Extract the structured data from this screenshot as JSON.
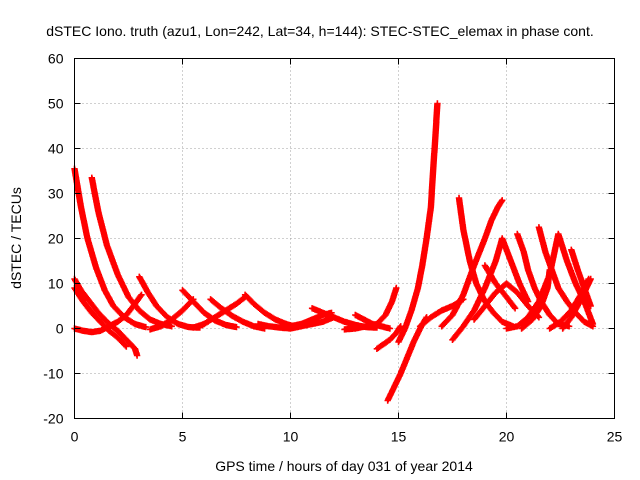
{
  "chart_data": {
    "type": "scatter",
    "title": "dSTEC Iono. truth (azu1, Lon=242, Lat=34, h=144): STEC-STEC_elemax in phase cont.",
    "xlabel": "GPS time / hours of day 031 of year 2014",
    "ylabel": "dSTEC  / TECUs",
    "xlim": [
      0,
      25
    ],
    "ylim": [
      -20,
      60
    ],
    "xticks": [
      0,
      5,
      10,
      15,
      20,
      25
    ],
    "yticks": [
      -20,
      -10,
      0,
      10,
      20,
      30,
      40,
      50,
      60
    ],
    "grid": true,
    "marker": "plus",
    "color": "#ff0000",
    "arcs": [
      [
        [
          0.0,
          35.5
        ],
        [
          0.3,
          27
        ],
        [
          0.6,
          20
        ],
        [
          1.0,
          13.5
        ],
        [
          1.4,
          8.5
        ],
        [
          1.8,
          5
        ],
        [
          2.3,
          2.5
        ],
        [
          2.8,
          1
        ],
        [
          3.3,
          0.3
        ]
      ],
      [
        [
          0.0,
          11
        ],
        [
          0.3,
          8.5
        ],
        [
          0.7,
          6
        ],
        [
          1.1,
          3.5
        ],
        [
          1.5,
          1.5
        ],
        [
          2.0,
          -0.5
        ],
        [
          2.4,
          -2.5
        ],
        [
          2.8,
          -4.5
        ],
        [
          2.9,
          -6
        ]
      ],
      [
        [
          0.0,
          9
        ],
        [
          0.4,
          6
        ],
        [
          0.8,
          3.5
        ],
        [
          1.2,
          1.5
        ],
        [
          1.6,
          -0.5
        ],
        [
          2.0,
          -2
        ],
        [
          2.4,
          -4
        ]
      ],
      [
        [
          0.0,
          0
        ],
        [
          0.4,
          -0.5
        ],
        [
          0.8,
          -0.8
        ],
        [
          1.2,
          -0.5
        ],
        [
          1.6,
          0.5
        ],
        [
          2.0,
          1.5
        ],
        [
          2.4,
          3
        ],
        [
          2.8,
          5.5
        ],
        [
          3.1,
          7.5
        ]
      ],
      [
        [
          0.8,
          33.5
        ],
        [
          1.1,
          26
        ],
        [
          1.5,
          18.5
        ],
        [
          2.0,
          12
        ],
        [
          2.5,
          7
        ],
        [
          3.0,
          4
        ],
        [
          3.5,
          2
        ],
        [
          4.0,
          1
        ],
        [
          4.5,
          0.5
        ]
      ],
      [
        [
          3.0,
          11.5
        ],
        [
          3.4,
          8
        ],
        [
          3.8,
          5
        ],
        [
          4.3,
          2.5
        ],
        [
          4.8,
          1
        ],
        [
          5.3,
          0.3
        ],
        [
          5.8,
          0.2
        ]
      ],
      [
        [
          3.5,
          -0.2
        ],
        [
          4.0,
          0.5
        ],
        [
          4.5,
          2
        ],
        [
          5.0,
          4
        ],
        [
          5.5,
          6.5
        ]
      ],
      [
        [
          5.0,
          8.5
        ],
        [
          5.5,
          6
        ],
        [
          6.0,
          3.5
        ],
        [
          6.5,
          1.8
        ],
        [
          7.0,
          0.8
        ],
        [
          7.5,
          0.3
        ]
      ],
      [
        [
          5.5,
          0.2
        ],
        [
          6.0,
          1
        ],
        [
          6.5,
          2.5
        ],
        [
          7.0,
          4
        ],
        [
          7.5,
          5.5
        ],
        [
          7.9,
          7
        ]
      ],
      [
        [
          6.3,
          6.5
        ],
        [
          6.8,
          4.5
        ],
        [
          7.3,
          2.8
        ],
        [
          7.8,
          1.5
        ],
        [
          8.3,
          0.5
        ],
        [
          8.8,
          0
        ]
      ],
      [
        [
          7.9,
          7.5
        ],
        [
          8.3,
          5.5
        ],
        [
          8.8,
          3.5
        ],
        [
          9.3,
          2
        ],
        [
          9.8,
          1
        ],
        [
          10.3,
          0.3
        ]
      ],
      [
        [
          8.5,
          1
        ],
        [
          9.0,
          0.5
        ],
        [
          9.5,
          0.2
        ],
        [
          10.0,
          0
        ],
        [
          10.5,
          0.5
        ],
        [
          11.0,
          1
        ],
        [
          11.5,
          1.5
        ],
        [
          12.0,
          2.5
        ]
      ],
      [
        [
          10.0,
          0.5
        ],
        [
          10.5,
          1
        ],
        [
          11.0,
          2
        ],
        [
          11.5,
          3
        ],
        [
          11.9,
          3.5
        ]
      ],
      [
        [
          11.0,
          4.5
        ],
        [
          11.5,
          3.5
        ],
        [
          12.0,
          2.5
        ],
        [
          12.5,
          1.5
        ],
        [
          13.0,
          0.8
        ],
        [
          13.5,
          0.3
        ],
        [
          14.0,
          0.2
        ]
      ],
      [
        [
          13.0,
          3
        ],
        [
          13.4,
          2
        ],
        [
          13.8,
          1
        ],
        [
          14.2,
          0.5
        ],
        [
          14.6,
          0
        ]
      ],
      [
        [
          12.5,
          -0.2
        ],
        [
          13.0,
          0
        ],
        [
          13.5,
          0.5
        ],
        [
          14.0,
          1
        ],
        [
          14.4,
          3
        ],
        [
          14.7,
          6
        ],
        [
          14.9,
          9
        ]
      ],
      [
        [
          14.5,
          -16
        ],
        [
          14.8,
          -13
        ],
        [
          15.1,
          -10
        ],
        [
          15.4,
          -6.5
        ],
        [
          15.7,
          -3
        ],
        [
          16.0,
          0
        ],
        [
          16.3,
          2.5
        ]
      ],
      [
        [
          14.0,
          -4.5
        ],
        [
          14.3,
          -3.5
        ],
        [
          14.6,
          -2.5
        ],
        [
          14.9,
          -1
        ],
        [
          15.1,
          0.5
        ]
      ],
      [
        [
          15.0,
          -3
        ],
        [
          15.3,
          0
        ],
        [
          15.6,
          4
        ],
        [
          15.9,
          9
        ],
        [
          16.1,
          14
        ],
        [
          16.3,
          20
        ],
        [
          16.5,
          27
        ],
        [
          16.6,
          35
        ],
        [
          16.7,
          42
        ],
        [
          16.8,
          50
        ]
      ],
      [
        [
          16.0,
          0.5
        ],
        [
          16.5,
          2.5
        ],
        [
          17.0,
          4
        ],
        [
          17.5,
          5
        ],
        [
          18.0,
          6.5
        ]
      ],
      [
        [
          17.5,
          -2.5
        ],
        [
          18.0,
          0.5
        ],
        [
          18.5,
          4
        ],
        [
          19.0,
          9
        ],
        [
          19.5,
          15
        ],
        [
          19.8,
          20
        ],
        [
          20.2,
          15
        ],
        [
          20.6,
          10
        ],
        [
          21.0,
          6
        ]
      ],
      [
        [
          17.0,
          0.5
        ],
        [
          17.5,
          3
        ],
        [
          18.0,
          7.5
        ],
        [
          18.5,
          14
        ],
        [
          19.0,
          20
        ],
        [
          19.3,
          24
        ],
        [
          19.6,
          27
        ],
        [
          19.8,
          28.5
        ]
      ],
      [
        [
          17.8,
          29
        ],
        [
          18.0,
          22
        ],
        [
          18.3,
          15
        ],
        [
          18.6,
          10
        ],
        [
          19.0,
          6
        ],
        [
          19.4,
          3.5
        ],
        [
          19.8,
          1.5
        ],
        [
          20.3,
          0.5
        ]
      ],
      [
        [
          18.5,
          2
        ],
        [
          19.0,
          5
        ],
        [
          19.5,
          8
        ],
        [
          20.0,
          10
        ],
        [
          20.5,
          8
        ],
        [
          21.0,
          5
        ],
        [
          21.5,
          2.5
        ]
      ],
      [
        [
          19.0,
          14
        ],
        [
          19.5,
          10
        ],
        [
          20.0,
          7
        ],
        [
          20.4,
          4.5
        ]
      ],
      [
        [
          20.0,
          0
        ],
        [
          20.5,
          0.5
        ],
        [
          21.0,
          2.5
        ],
        [
          21.5,
          6
        ],
        [
          22.0,
          12
        ],
        [
          22.4,
          21
        ],
        [
          22.8,
          15
        ],
        [
          23.2,
          10
        ],
        [
          23.6,
          6
        ],
        [
          24.0,
          1
        ]
      ],
      [
        [
          20.7,
          0
        ],
        [
          21.2,
          2
        ],
        [
          21.6,
          5
        ],
        [
          21.9,
          9
        ],
        [
          22.0,
          13
        ]
      ],
      [
        [
          20.5,
          21
        ],
        [
          20.8,
          17
        ],
        [
          21.0,
          13
        ],
        [
          21.3,
          9
        ],
        [
          21.6,
          6
        ],
        [
          22.0,
          3
        ],
        [
          22.4,
          1
        ],
        [
          22.9,
          0.5
        ]
      ],
      [
        [
          21.5,
          22.5
        ],
        [
          21.8,
          17
        ],
        [
          22.1,
          13
        ],
        [
          22.4,
          9
        ],
        [
          22.8,
          6
        ],
        [
          23.2,
          3.5
        ],
        [
          23.6,
          1.5
        ],
        [
          24.0,
          0.5
        ]
      ],
      [
        [
          22.0,
          0
        ],
        [
          22.5,
          1.5
        ],
        [
          23.0,
          4
        ],
        [
          23.5,
          8
        ],
        [
          23.8,
          11
        ]
      ],
      [
        [
          22.6,
          0
        ],
        [
          23.0,
          2.5
        ],
        [
          23.4,
          6
        ],
        [
          23.7,
          9
        ],
        [
          23.9,
          11
        ]
      ],
      [
        [
          23.0,
          17.5
        ],
        [
          23.3,
          13
        ],
        [
          23.6,
          9
        ],
        [
          23.9,
          5
        ]
      ]
    ]
  }
}
